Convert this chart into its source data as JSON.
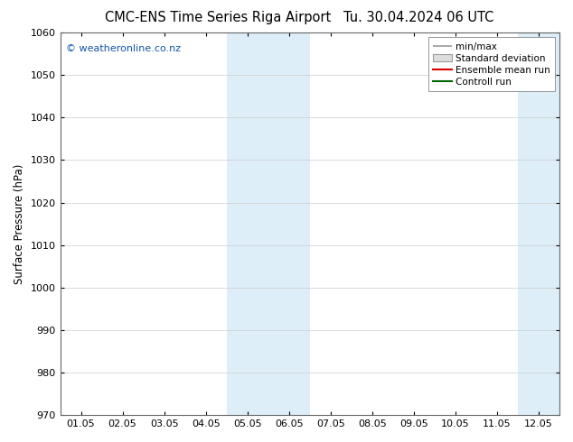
{
  "title_left": "CMC-ENS Time Series Riga Airport",
  "title_right": "Tu. 30.04.2024 06 UTC",
  "ylabel": "Surface Pressure (hPa)",
  "ylim": [
    970,
    1060
  ],
  "yticks": [
    970,
    980,
    990,
    1000,
    1010,
    1020,
    1030,
    1040,
    1050,
    1060
  ],
  "x_tick_labels": [
    "01.05",
    "02.05",
    "03.05",
    "04.05",
    "05.05",
    "06.05",
    "07.05",
    "08.05",
    "09.05",
    "10.05",
    "11.05",
    "12.05"
  ],
  "x_tick_positions": [
    0,
    1,
    2,
    3,
    4,
    5,
    6,
    7,
    8,
    9,
    10,
    11
  ],
  "xlim": [
    -0.5,
    11.5
  ],
  "shaded_bands": [
    {
      "xmin": 3.5,
      "xmax": 5.5,
      "color": "#ddeef8"
    },
    {
      "xmin": 10.5,
      "xmax": 11.75,
      "color": "#ddeef8"
    }
  ],
  "legend_entries": [
    {
      "label": "min/max",
      "type": "line",
      "color": "#999999",
      "lw": 1.2
    },
    {
      "label": "Standard deviation",
      "type": "box",
      "facecolor": "#dddddd",
      "edgecolor": "#999999"
    },
    {
      "label": "Ensemble mean run",
      "type": "line",
      "color": "#dd0000",
      "lw": 1.5
    },
    {
      "label": "Controll run",
      "type": "line",
      "color": "#006600",
      "lw": 1.5
    }
  ],
  "watermark": "© weatheronline.co.nz",
  "watermark_color": "#1155aa",
  "background_color": "#ffffff",
  "plot_bg_color": "#ffffff",
  "grid_color": "#cccccc",
  "title_fontsize": 10.5,
  "axis_label_fontsize": 8.5,
  "tick_fontsize": 8,
  "legend_fontsize": 7.5,
  "watermark_fontsize": 8
}
